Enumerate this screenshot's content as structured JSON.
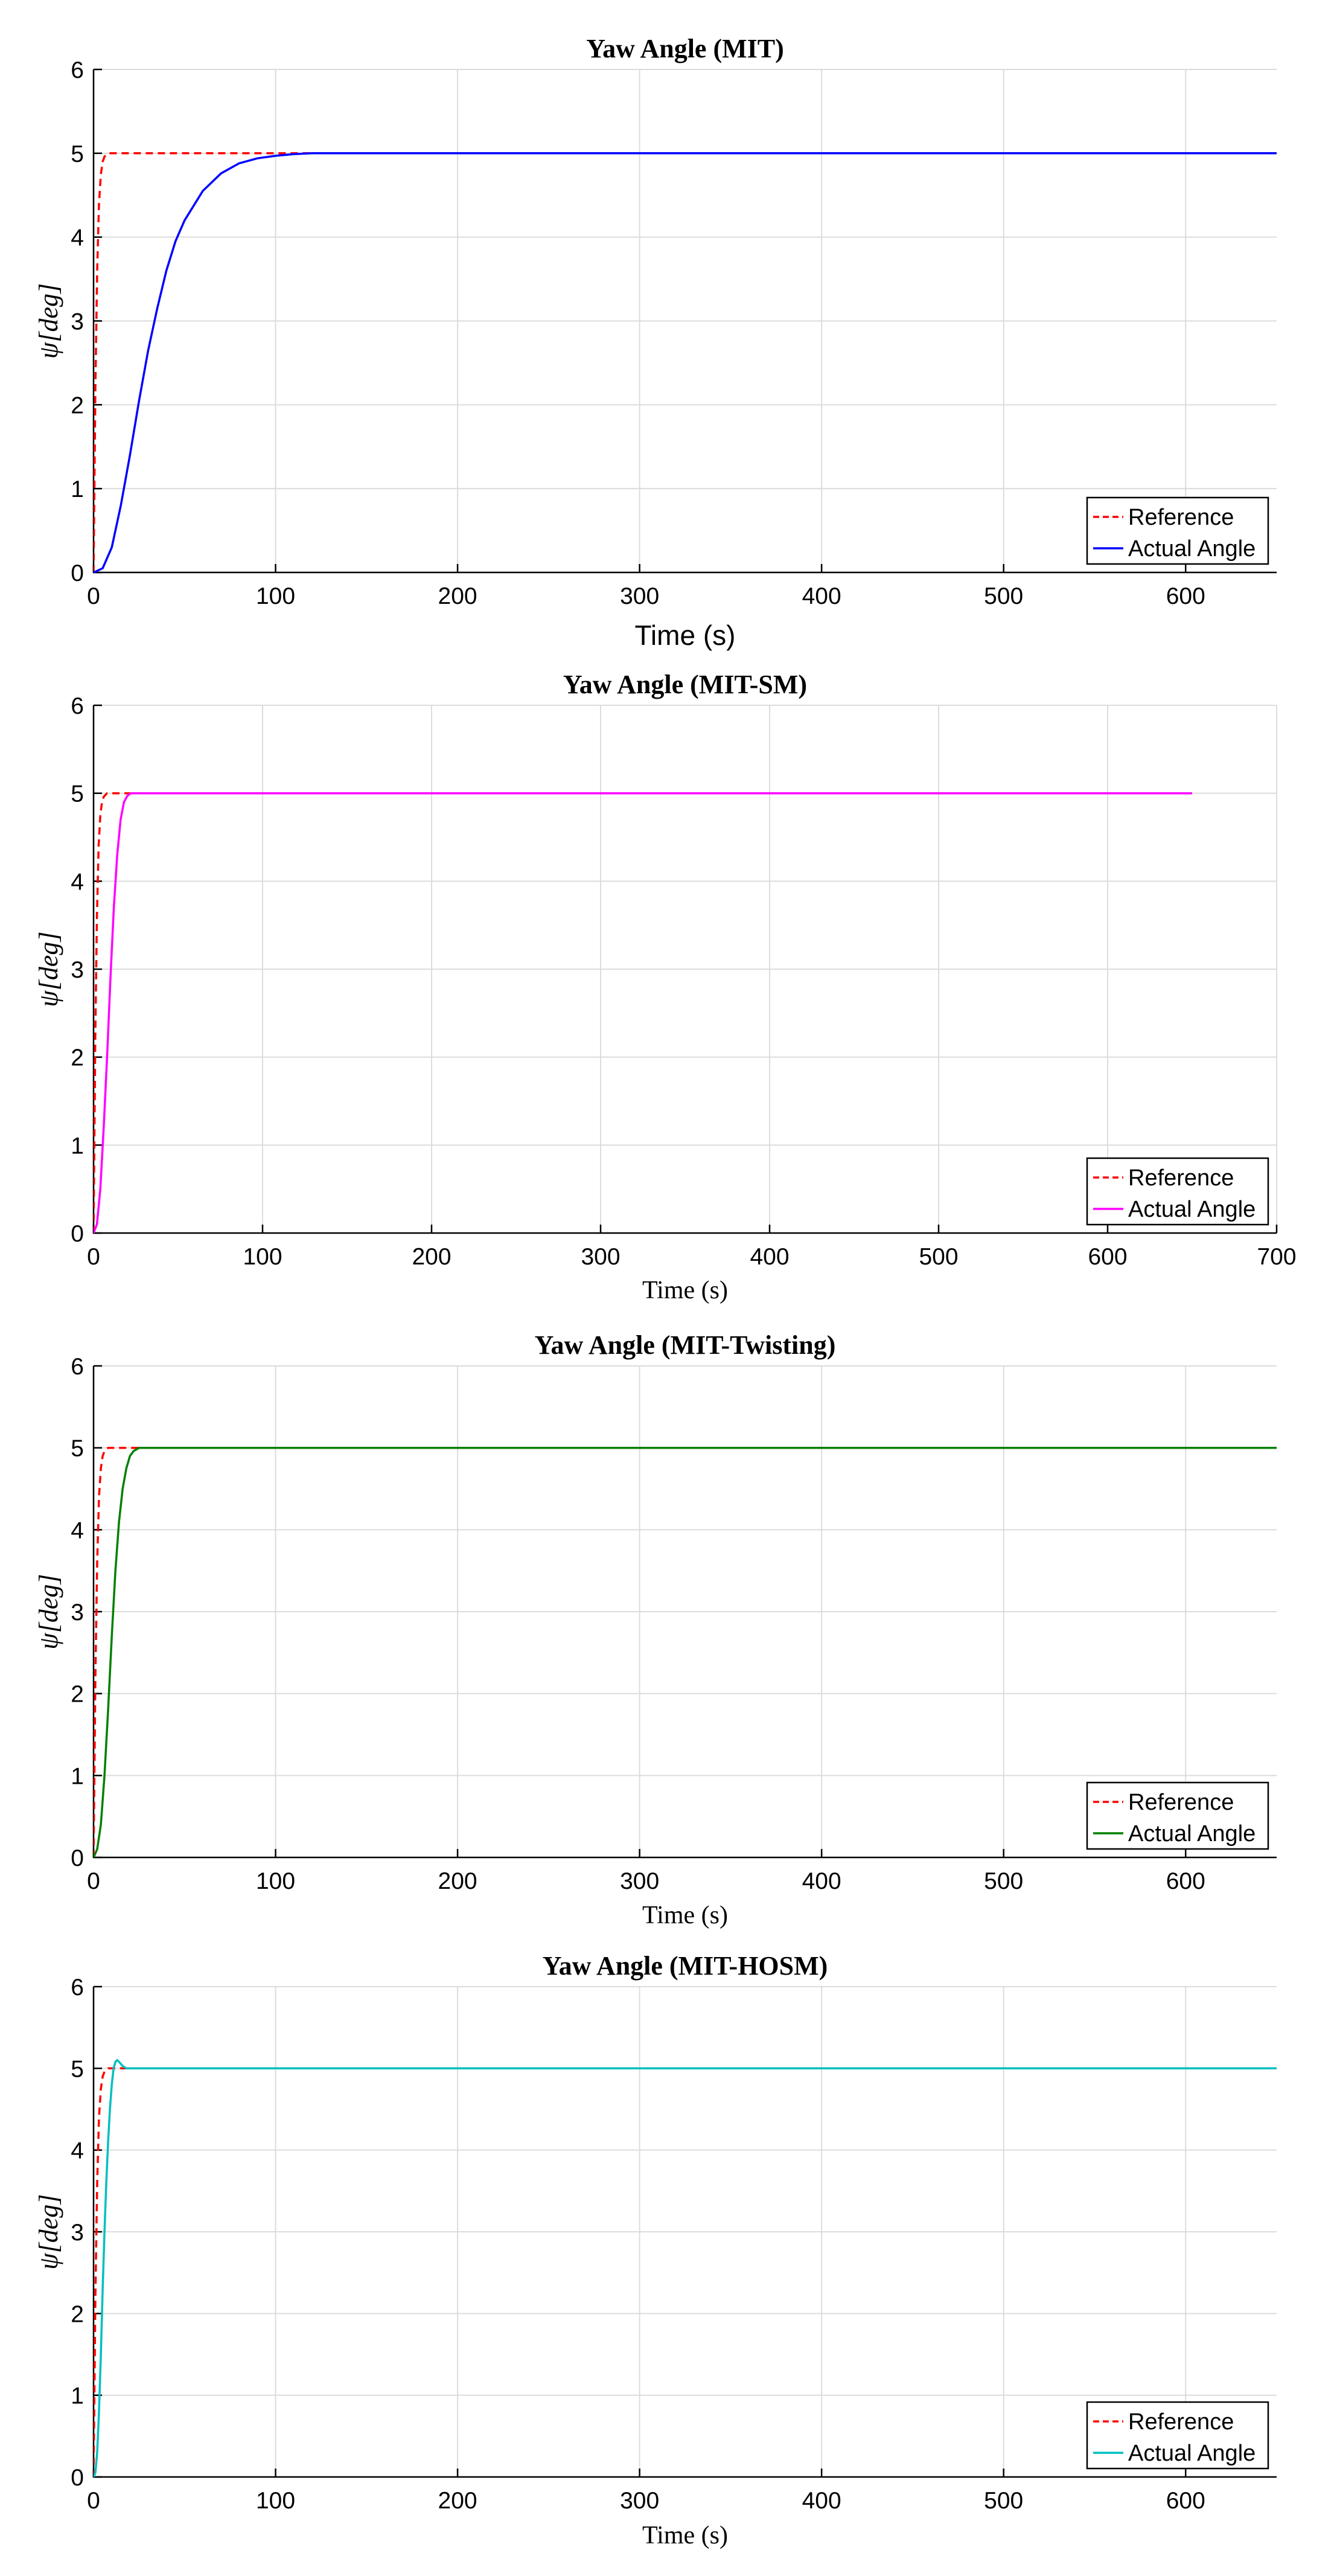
{
  "chart_data": [
    {
      "type": "line",
      "title": "Yaw Angle (MIT)",
      "xlabel": "Time (s)",
      "ylabel": "ψ[deg]",
      "xlim": [
        0,
        650
      ],
      "ylim": [
        0,
        6
      ],
      "xticks": [
        0,
        100,
        200,
        300,
        400,
        500,
        600
      ],
      "yticks": [
        0,
        1,
        2,
        3,
        4,
        5,
        6
      ],
      "grid": true,
      "legend_position": "bottom-right",
      "series": [
        {
          "name": "Reference",
          "color": "#ff0000",
          "style": "dashed",
          "x": [
            0,
            1,
            2,
            3,
            4,
            5,
            6,
            8,
            10,
            650
          ],
          "y": [
            0,
            2.2,
            3.6,
            4.4,
            4.75,
            4.9,
            4.96,
            5.0,
            5.0,
            5.0
          ]
        },
        {
          "name": "Actual Angle",
          "color": "#0000ff",
          "style": "solid",
          "x": [
            0,
            5,
            10,
            15,
            20,
            25,
            30,
            35,
            40,
            45,
            50,
            60,
            70,
            80,
            90,
            100,
            110,
            120,
            130,
            650
          ],
          "y": [
            0,
            0.05,
            0.3,
            0.8,
            1.4,
            2.05,
            2.65,
            3.15,
            3.6,
            3.95,
            4.2,
            4.55,
            4.76,
            4.88,
            4.94,
            4.97,
            4.99,
            5.0,
            5.0,
            5.0
          ]
        }
      ]
    },
    {
      "type": "line",
      "title": "Yaw Angle (MIT-SM)",
      "xlabel": "Time (s)",
      "ylabel": "ψ[deg]",
      "xlim": [
        0,
        700
      ],
      "ylim": [
        0,
        6
      ],
      "xticks": [
        0,
        100,
        200,
        300,
        400,
        500,
        600,
        700
      ],
      "yticks": [
        0,
        1,
        2,
        3,
        4,
        5,
        6
      ],
      "grid": true,
      "legend_position": "bottom-right",
      "series": [
        {
          "name": "Reference",
          "color": "#ff0000",
          "style": "dashed",
          "x": [
            0,
            1,
            2,
            3,
            4,
            5,
            6,
            8,
            10,
            650
          ],
          "y": [
            0,
            2.2,
            3.6,
            4.4,
            4.75,
            4.9,
            4.96,
            5.0,
            5.0,
            5.0
          ]
        },
        {
          "name": "Actual Angle",
          "color": "#ff00ff",
          "style": "solid",
          "x": [
            0,
            2,
            4,
            6,
            8,
            10,
            12,
            14,
            16,
            18,
            20,
            22,
            25,
            650
          ],
          "y": [
            0,
            0.1,
            0.5,
            1.2,
            2.0,
            2.9,
            3.7,
            4.3,
            4.7,
            4.9,
            4.97,
            5.0,
            5.0,
            5.0
          ]
        }
      ]
    },
    {
      "type": "line",
      "title": "Yaw Angle (MIT-Twisting)",
      "xlabel": "Time (s)",
      "ylabel": "ψ[deg]",
      "xlim": [
        0,
        650
      ],
      "ylim": [
        0,
        6
      ],
      "xticks": [
        0,
        100,
        200,
        300,
        400,
        500,
        600
      ],
      "yticks": [
        0,
        1,
        2,
        3,
        4,
        5,
        6
      ],
      "grid": true,
      "legend_position": "bottom-right",
      "series": [
        {
          "name": "Reference",
          "color": "#ff0000",
          "style": "dashed",
          "x": [
            0,
            1,
            2,
            3,
            4,
            5,
            6,
            8,
            10,
            650
          ],
          "y": [
            0,
            2.2,
            3.6,
            4.4,
            4.75,
            4.9,
            4.96,
            5.0,
            5.0,
            5.0
          ]
        },
        {
          "name": "Actual Angle",
          "color": "#008000",
          "style": "solid",
          "x": [
            0,
            2,
            4,
            6,
            8,
            10,
            12,
            14,
            16,
            18,
            20,
            22,
            25,
            28,
            650
          ],
          "y": [
            0,
            0.1,
            0.4,
            1.0,
            1.8,
            2.7,
            3.5,
            4.1,
            4.5,
            4.75,
            4.9,
            4.96,
            5.0,
            5.0,
            5.0
          ]
        }
      ]
    },
    {
      "type": "line",
      "title": "Yaw Angle (MIT-HOSM)",
      "xlabel": "Time (s)",
      "ylabel": "ψ[deg]",
      "xlim": [
        0,
        650
      ],
      "ylim": [
        0,
        6
      ],
      "xticks": [
        0,
        100,
        200,
        300,
        400,
        500,
        600
      ],
      "yticks": [
        0,
        1,
        2,
        3,
        4,
        5,
        6
      ],
      "grid": true,
      "legend_position": "bottom-right",
      "series": [
        {
          "name": "Reference",
          "color": "#ff0000",
          "style": "dashed",
          "x": [
            0,
            1,
            2,
            3,
            4,
            5,
            6,
            8,
            10,
            650
          ],
          "y": [
            0,
            2.2,
            3.6,
            4.4,
            4.75,
            4.9,
            4.96,
            5.0,
            5.0,
            5.0
          ]
        },
        {
          "name": "Actual Angle",
          "color": "#00bfbf",
          "style": "solid",
          "x": [
            0,
            1,
            2,
            3,
            4,
            5,
            6,
            7,
            8,
            9,
            10,
            11,
            12,
            13,
            14,
            16,
            18,
            20,
            650
          ],
          "y": [
            0,
            0.05,
            0.3,
            0.8,
            1.5,
            2.3,
            3.0,
            3.6,
            4.1,
            4.5,
            4.8,
            5.0,
            5.08,
            5.1,
            5.08,
            5.03,
            5.0,
            5.0,
            5.0
          ]
        }
      ]
    }
  ]
}
